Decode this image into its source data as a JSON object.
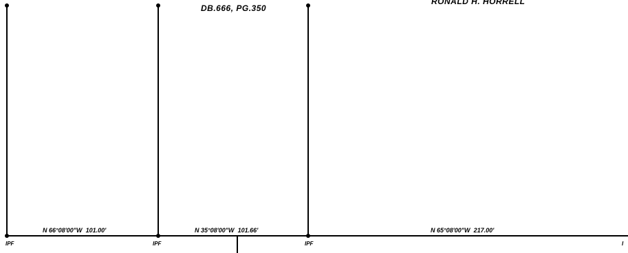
{
  "parcels": [
    {
      "deed_reference": "DB.666, PG.350"
    },
    {
      "owner_name": "RONALD H. HORRELL"
    }
  ],
  "boundary_calls": [
    {
      "bearing": "N 66°08'00\"W",
      "distance": "101.00'"
    },
    {
      "bearing": "N 35°08'00\"W",
      "distance": "101.66'"
    },
    {
      "bearing": "N 65°08'00\"W",
      "distance": "217.00'"
    }
  ],
  "monuments": [
    {
      "label": "IPF"
    },
    {
      "label": "IPF"
    },
    {
      "label": "IPF"
    },
    {
      "label": "I"
    }
  ],
  "colors": {
    "line": "#000000",
    "text": "#000000",
    "background": "#ffffff"
  }
}
